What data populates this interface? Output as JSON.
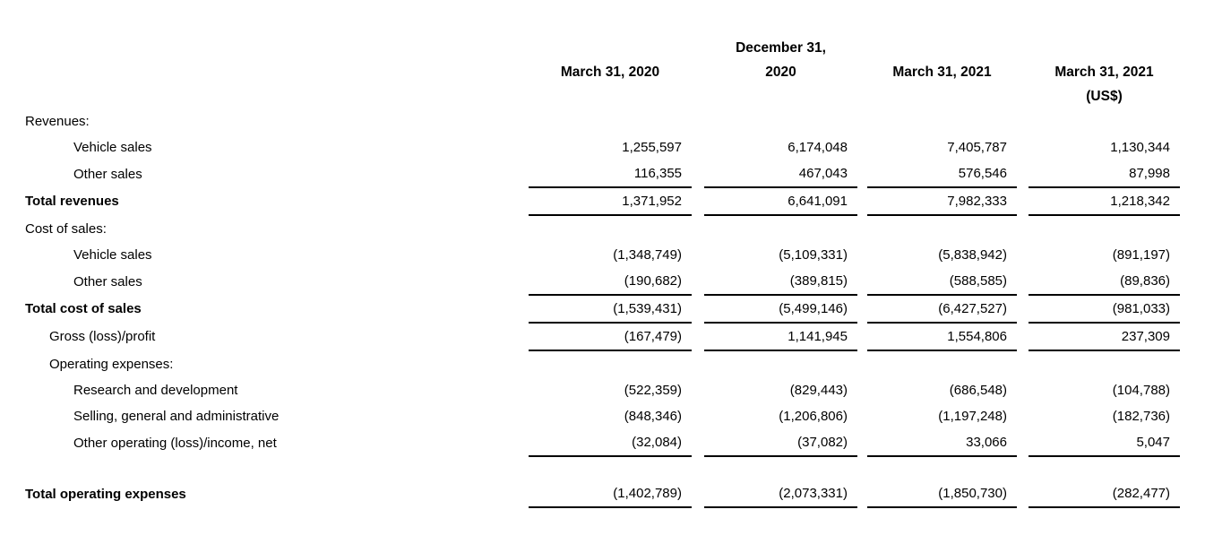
{
  "table": {
    "headers": [
      {
        "lines": [
          "",
          "March 31, 2020",
          ""
        ]
      },
      {
        "lines": [
          "December 31,",
          "2020",
          ""
        ]
      },
      {
        "lines": [
          "",
          "March 31, 2021",
          ""
        ]
      },
      {
        "lines": [
          "",
          "March 31, 2021",
          "(US$)"
        ]
      }
    ],
    "rows": [
      {
        "label": "Revenues:",
        "indent": 0,
        "bold": false,
        "underline": false,
        "values": [
          "",
          "",
          "",
          ""
        ]
      },
      {
        "label": "Vehicle sales",
        "indent": 2,
        "bold": false,
        "underline": false,
        "values": [
          "1,255,597",
          "6,174,048",
          "7,405,787",
          "1,130,344"
        ]
      },
      {
        "label": "Other sales",
        "indent": 2,
        "bold": false,
        "underline": true,
        "values": [
          "116,355",
          "467,043",
          "576,546",
          "87,998"
        ]
      },
      {
        "label": "Total revenues",
        "indent": 0,
        "bold": true,
        "underline": true,
        "values": [
          "1,371,952",
          "6,641,091",
          "7,982,333",
          "1,218,342"
        ]
      },
      {
        "label": "Cost of sales:",
        "indent": 0,
        "bold": false,
        "underline": false,
        "values": [
          "",
          "",
          "",
          ""
        ]
      },
      {
        "label": "Vehicle sales",
        "indent": 2,
        "bold": false,
        "underline": false,
        "values": [
          "(1,348,749)",
          "(5,109,331)",
          "(5,838,942)",
          "(891,197)"
        ]
      },
      {
        "label": "Other sales",
        "indent": 2,
        "bold": false,
        "underline": true,
        "values": [
          "(190,682)",
          "(389,815)",
          "(588,585)",
          "(89,836)"
        ]
      },
      {
        "label": "Total cost of sales",
        "indent": 0,
        "bold": true,
        "underline": true,
        "values": [
          "(1,539,431)",
          "(5,499,146)",
          "(6,427,527)",
          "(981,033)"
        ]
      },
      {
        "label": "Gross (loss)/profit",
        "indent": 1,
        "bold": false,
        "underline": true,
        "values": [
          "(167,479)",
          "1,141,945",
          "1,554,806",
          "237,309"
        ]
      },
      {
        "label": "Operating expenses:",
        "indent": 1,
        "bold": false,
        "underline": false,
        "values": [
          "",
          "",
          "",
          ""
        ]
      },
      {
        "label": "Research and development",
        "indent": 2,
        "bold": false,
        "underline": false,
        "values": [
          "(522,359)",
          "(829,443)",
          "(686,548)",
          "(104,788)"
        ]
      },
      {
        "label": "Selling, general and administrative",
        "indent": 2,
        "bold": false,
        "underline": false,
        "values": [
          "(848,346)",
          "(1,206,806)",
          "(1,197,248)",
          "(182,736)"
        ]
      },
      {
        "label": "Other operating (loss)/income, net",
        "indent": 2,
        "bold": false,
        "underline": true,
        "values": [
          "(32,084)",
          "(37,082)",
          "33,066",
          "5,047"
        ]
      },
      {
        "spacer": true
      },
      {
        "label": "Total operating expenses",
        "indent": 0,
        "bold": true,
        "underline": true,
        "values": [
          "(1,402,789)",
          "(2,073,331)",
          "(1,850,730)",
          "(282,477)"
        ]
      }
    ]
  }
}
